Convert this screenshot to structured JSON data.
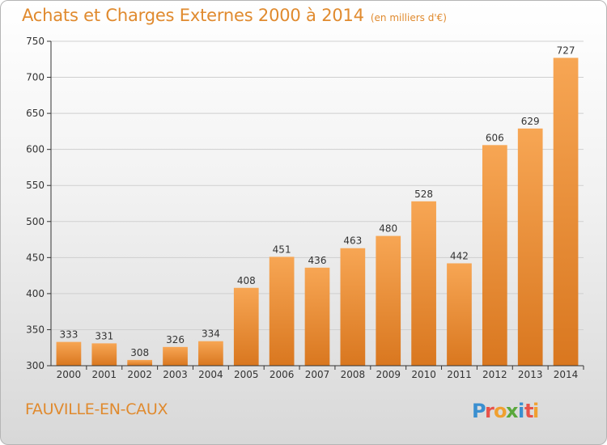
{
  "title": "Achats et Charges Externes 2000 à 2014",
  "subtitle": "(en milliers d'€)",
  "city": "FAUVILLE-EN-CAUX",
  "logo_text": "Proxiti",
  "colors": {
    "accent": "#e08a2e",
    "bar_light": "#f7a654",
    "bar_dark": "#d9771f",
    "grid": "#cfcfcf",
    "axis": "#333333"
  },
  "chart_data": {
    "type": "bar",
    "categories": [
      "2000",
      "2001",
      "2002",
      "2003",
      "2004",
      "2005",
      "2006",
      "2007",
      "2008",
      "2009",
      "2010",
      "2011",
      "2012",
      "2013",
      "2014"
    ],
    "values": [
      333,
      331,
      308,
      326,
      334,
      408,
      451,
      436,
      463,
      480,
      528,
      442,
      606,
      629,
      727
    ],
    "ylim": [
      300,
      750
    ],
    "yticks": [
      300,
      350,
      400,
      450,
      500,
      550,
      600,
      650,
      700,
      750
    ],
    "grid": true,
    "xlabel": "",
    "ylabel": ""
  }
}
